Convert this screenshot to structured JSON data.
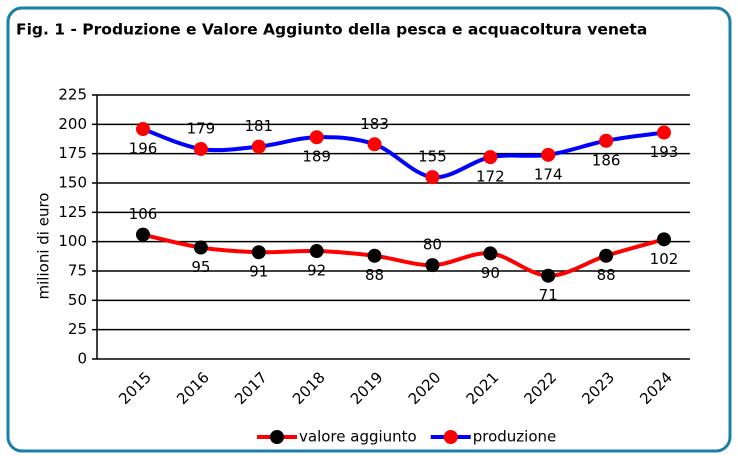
{
  "chart_data": {
    "type": "line",
    "title": "Fig. 1 - Produzione e Valore Aggiunto della pesca e acquacoltura veneta",
    "y_label": "milioni di euro",
    "categories": [
      "2015",
      "2016",
      "2017",
      "2018",
      "2019",
      "2020",
      "2021",
      "2022",
      "2023",
      "2024"
    ],
    "series": [
      {
        "name": "valore aggiunto",
        "color": "#ff0000",
        "marker_color": "#000000",
        "values": [
          106,
          95,
          91,
          92,
          88,
          80,
          90,
          71,
          88,
          102
        ]
      },
      {
        "name": "produzione",
        "color": "#0000ff",
        "marker_color": "#ff0000",
        "values": [
          196,
          179,
          181,
          189,
          183,
          155,
          172,
          174,
          186,
          193
        ]
      }
    ],
    "ylim": [
      0,
      225
    ],
    "yticks": [
      0,
      25,
      50,
      75,
      100,
      125,
      150,
      175,
      200,
      225
    ],
    "grid": true
  }
}
